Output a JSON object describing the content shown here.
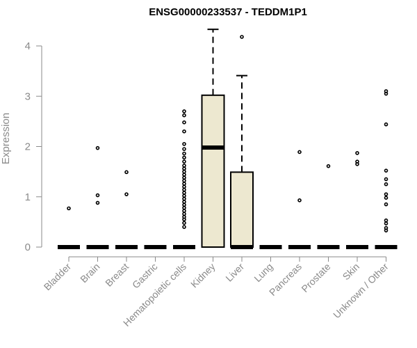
{
  "chart_data": {
    "type": "box",
    "title": "ENSG00000233537 - TEDDM1P1",
    "ylabel": "Expression",
    "xlabel": "",
    "ylim": [
      0,
      4.3
    ],
    "yticks": [
      "0",
      "1",
      "2",
      "3",
      "4"
    ],
    "box_fill": "#ede8d0",
    "categories": [
      "Bladder",
      "Brain",
      "Breast",
      "Gastric",
      "Hematopoietic cells",
      "Kidney",
      "Liver",
      "Lung",
      "Pancreas",
      "Prostate",
      "Skin",
      "Unknown / Other"
    ],
    "boxes": [
      {
        "category": "Bladder",
        "q1": 0,
        "median": 0,
        "q3": 0,
        "whisker_low": 0,
        "whisker_high": 0,
        "outliers": [
          0.77
        ]
      },
      {
        "category": "Brain",
        "q1": 0,
        "median": 0,
        "q3": 0,
        "whisker_low": 0,
        "whisker_high": 0,
        "outliers": [
          0.88,
          1.03,
          1.97
        ]
      },
      {
        "category": "Breast",
        "q1": 0,
        "median": 0,
        "q3": 0,
        "whisker_low": 0,
        "whisker_high": 0,
        "outliers": [
          1.05,
          1.49
        ]
      },
      {
        "category": "Gastric",
        "q1": 0,
        "median": 0,
        "q3": 0,
        "whisker_low": 0,
        "whisker_high": 0,
        "outliers": []
      },
      {
        "category": "Hematopoietic cells",
        "q1": 0,
        "median": 0,
        "q3": 0,
        "whisker_low": 0,
        "whisker_high": 0,
        "outliers": [
          0.4,
          0.48,
          0.55,
          0.6,
          0.66,
          0.72,
          0.78,
          0.84,
          0.9,
          0.96,
          1.02,
          1.08,
          1.14,
          1.2,
          1.26,
          1.32,
          1.38,
          1.44,
          1.5,
          1.56,
          1.62,
          1.7,
          1.78,
          1.86,
          1.95,
          2.05,
          2.3,
          2.48,
          2.62,
          2.7
        ]
      },
      {
        "category": "Kidney",
        "q1": 0,
        "median": 1.98,
        "q3": 3.02,
        "whisker_low": 0,
        "whisker_high": 4.33,
        "outliers": []
      },
      {
        "category": "Liver",
        "q1": 0,
        "median": 0,
        "q3": 1.49,
        "whisker_low": 0,
        "whisker_high": 3.41,
        "outliers": [
          4.18
        ]
      },
      {
        "category": "Lung",
        "q1": 0,
        "median": 0,
        "q3": 0,
        "whisker_low": 0,
        "whisker_high": 0,
        "outliers": []
      },
      {
        "category": "Pancreas",
        "q1": 0,
        "median": 0,
        "q3": 0,
        "whisker_low": 0,
        "whisker_high": 0,
        "outliers": [
          0.93,
          1.89
        ]
      },
      {
        "category": "Prostate",
        "q1": 0,
        "median": 0,
        "q3": 0,
        "whisker_low": 0,
        "whisker_high": 0,
        "outliers": [
          1.61
        ]
      },
      {
        "category": "Skin",
        "q1": 0,
        "median": 0,
        "q3": 0,
        "whisker_low": 0,
        "whisker_high": 0,
        "outliers": [
          1.65,
          1.7,
          1.87
        ]
      },
      {
        "category": "Unknown / Other",
        "q1": 0,
        "median": 0,
        "q3": 0,
        "whisker_low": 0,
        "whisker_high": 0,
        "outliers": [
          0.33,
          0.38,
          0.47,
          0.53,
          0.85,
          0.98,
          1.05,
          1.25,
          1.35,
          1.52,
          2.44,
          3.05,
          3.1
        ]
      }
    ]
  }
}
